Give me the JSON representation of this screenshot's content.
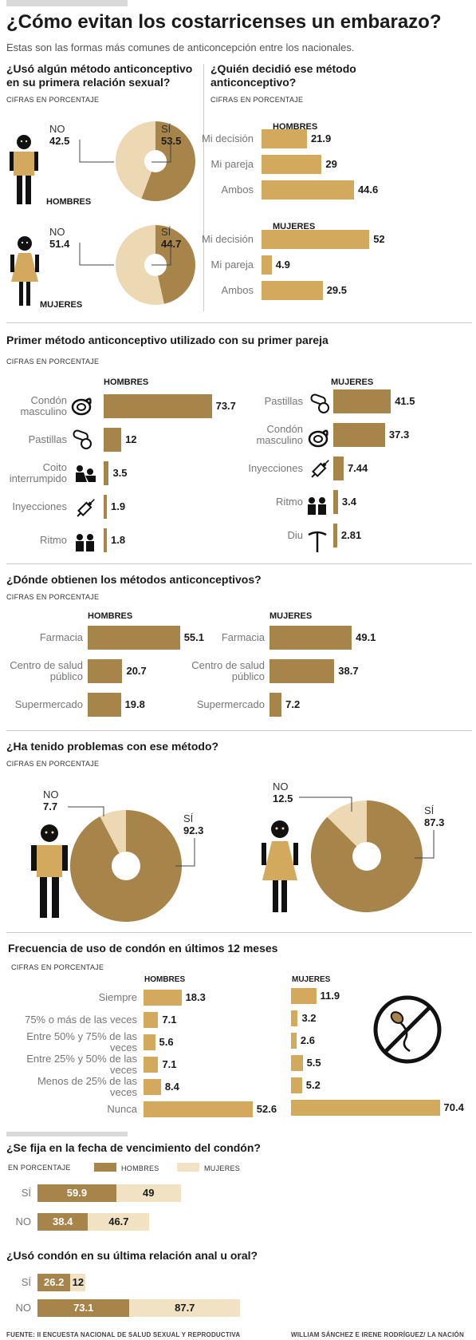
{
  "header": {
    "title": "¿Cómo evitan los costarricenses un embarazo?",
    "subtitle": "Estas son las formas más comunes de anticoncepción entre los nacionales."
  },
  "colors": {
    "dark": "#a6844a",
    "light": "#d2a95d",
    "pale": "#ecd8b3",
    "extra_pale": "#f1e2c4"
  },
  "chart_data": [
    {
      "type": "pie",
      "title": "¿Usó algún método anticonceptivo en su primera relación sexual?",
      "unit": "CIFRAS EN PORCENTAJE",
      "series": [
        {
          "name": "HOMBRES",
          "labels": [
            "NO",
            "SÍ"
          ],
          "values": [
            42.5,
            53.5
          ]
        },
        {
          "name": "MUJERES",
          "labels": [
            "NO",
            "SÍ"
          ],
          "values": [
            51.4,
            44.7
          ]
        }
      ]
    },
    {
      "type": "bar",
      "title": "¿Quién decidió ese método anticonceptivo?",
      "unit": "CIFRAS EN PORCENTAJE",
      "categories": [
        "Mi decisión",
        "Mi pareja",
        "Ambos"
      ],
      "series": [
        {
          "name": "HOMBRES",
          "values": [
            21.9,
            29,
            44.6
          ]
        },
        {
          "name": "MUJERES",
          "values": [
            52,
            4.9,
            29.5
          ]
        }
      ]
    },
    {
      "type": "bar",
      "title": "Primer método anticonceptivo utilizado con su primer pareja",
      "unit": "CIFRAS EN PORCENTAJE",
      "series": [
        {
          "name": "HOMBRES",
          "categories": [
            "Condón masculino",
            "Pastillas",
            "Coito interrumpido",
            "Inyecciones",
            "Ritmo"
          ],
          "values": [
            73.7,
            12,
            3.5,
            1.9,
            1.8
          ]
        },
        {
          "name": "MUJERES",
          "categories": [
            "Pastillas",
            "Condón masculino",
            "Inyecciones",
            "Ritmo",
            "Diu"
          ],
          "values": [
            41.5,
            37.3,
            7.44,
            3.4,
            2.81
          ]
        }
      ]
    },
    {
      "type": "bar",
      "title": "¿Dónde obtienen los métodos anticonceptivos?",
      "unit": "CIFRAS EN PORCENTAJE",
      "categories": [
        "Farmacia",
        "Centro de salud público",
        "Supermercado"
      ],
      "series": [
        {
          "name": "HOMBRES",
          "values": [
            55.1,
            20.7,
            19.8
          ]
        },
        {
          "name": "MUJERES",
          "values": [
            49.1,
            38.7,
            7.2
          ]
        }
      ]
    },
    {
      "type": "pie",
      "title": "¿Ha tenido problemas con ese método?",
      "unit": "CIFRAS EN PORCENTAJE",
      "series": [
        {
          "name": "HOMBRES",
          "labels": [
            "NO",
            "SÍ"
          ],
          "values": [
            7.7,
            92.3
          ]
        },
        {
          "name": "MUJERES",
          "labels": [
            "NO",
            "SÍ"
          ],
          "values": [
            12.5,
            87.3
          ]
        }
      ]
    },
    {
      "type": "bar",
      "title": "Frecuencia de uso de condón en últimos 12 meses",
      "unit": "CIFRAS EN PORCENTAJE",
      "categories": [
        "Siempre",
        "75% o más de las veces",
        "Entre 50% y 75% de las veces",
        "Entre 25% y 50% de las veces",
        "Menos de 25% de las veces",
        "Nunca"
      ],
      "series": [
        {
          "name": "HOMBRES",
          "values": [
            18.3,
            7.1,
            5.6,
            7.1,
            8.4,
            52.6
          ]
        },
        {
          "name": "MUJERES",
          "values": [
            11.9,
            3.2,
            2.6,
            5.5,
            5.2,
            70.4
          ]
        }
      ]
    },
    {
      "type": "bar",
      "stacked": true,
      "title": "¿Se fija en la fecha de vencimiento del condón?",
      "unit": "EN PORCENTAJE",
      "categories": [
        "SÍ",
        "NO"
      ],
      "series": [
        {
          "name": "HOMBRES",
          "values": [
            59.9,
            38.4
          ]
        },
        {
          "name": "MUJERES",
          "values": [
            49,
            46.7
          ]
        }
      ]
    },
    {
      "type": "bar",
      "stacked": true,
      "title": "¿Usó condón en su última relación anal u oral?",
      "categories": [
        "SÍ",
        "NO"
      ],
      "series": [
        {
          "name": "HOMBRES",
          "values": [
            26.2,
            73.1
          ]
        },
        {
          "name": "MUJERES",
          "values": [
            12,
            87.7
          ]
        }
      ]
    }
  ],
  "icons": [
    "man-icon",
    "woman-icon",
    "pill-icon",
    "condom-icon",
    "couple-icon",
    "syringe-icon",
    "iud-icon",
    "no-sperm-icon"
  ],
  "footer": {
    "source": "FUENTE: II ENCUESTA NACIONAL DE SALUD SEXUAL Y REPRODUCTIVA",
    "credit": "WILLIAM SÁNCHEZ E IRENE RODRÍGUEZ/ LA NACIÓN"
  }
}
